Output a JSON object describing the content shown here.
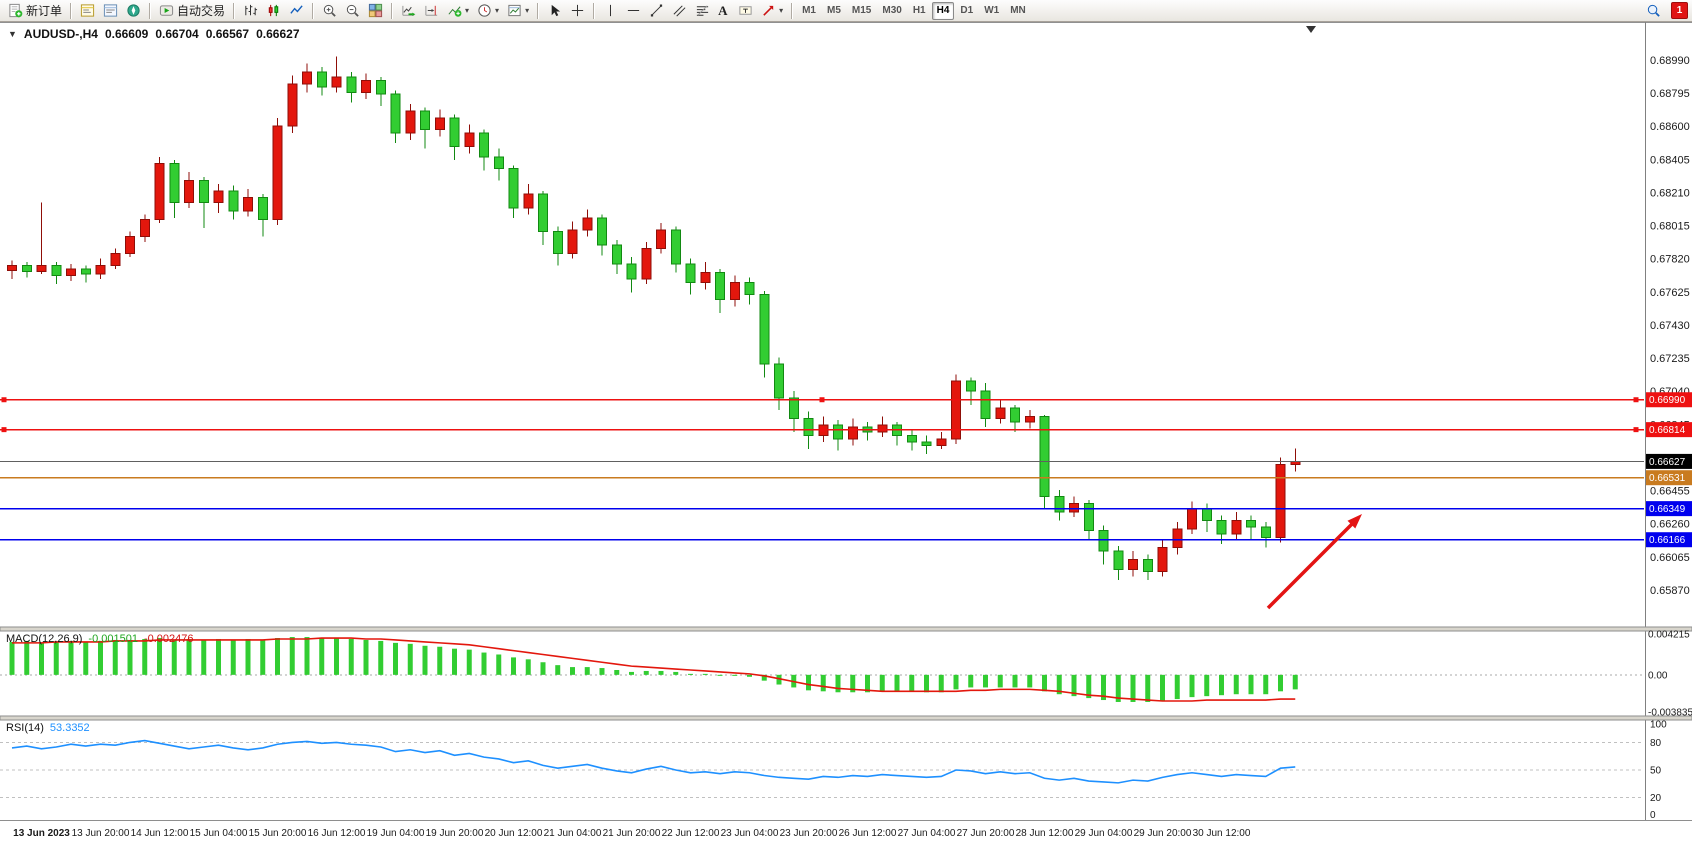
{
  "app": {
    "toolbar": {
      "new_order": "新订单",
      "autotrading": "自动交易",
      "text_tool": "A",
      "timeframes": [
        "M1",
        "M5",
        "M15",
        "M30",
        "H1",
        "H4",
        "D1",
        "W1",
        "MN"
      ],
      "active_timeframe": "H4",
      "notification_badge": "1"
    }
  },
  "chart": {
    "title": {
      "symbol": "AUDUSD-,H4",
      "open": "0.66609",
      "high": "0.66704",
      "low": "0.66567",
      "close": "0.66627"
    },
    "price_axis_labels": [
      "0.68990",
      "0.68795",
      "0.68600",
      "0.68405",
      "0.68210",
      "0.68015",
      "0.67820",
      "0.67625",
      "0.67430",
      "0.67235",
      "0.67040",
      "0.66845",
      "0.66650",
      "0.66455",
      "0.66260",
      "0.66065",
      "0.65870"
    ],
    "time_axis_labels": [
      "13 Jun 2023",
      "13 Jun 20:00",
      "14 Jun 12:00",
      "15 Jun 04:00",
      "15 Jun 20:00",
      "16 Jun 12:00",
      "19 Jun 04:00",
      "19 Jun 20:00",
      "20 Jun 12:00",
      "21 Jun 04:00",
      "21 Jun 20:00",
      "22 Jun 12:00",
      "23 Jun 04:00",
      "23 Jun 20:00",
      "26 Jun 12:00",
      "27 Jun 04:00",
      "27 Jun 20:00",
      "28 Jun 12:00",
      "29 Jun 04:00",
      "29 Jun 20:00",
      "30 Jun 12:00"
    ],
    "horizontal_lines": [
      {
        "price": 0.6699,
        "label": "0.66990",
        "color": "#ee1111",
        "selected": true
      },
      {
        "price": 0.66814,
        "label": "0.66814",
        "color": "#ee1111",
        "selected": true
      },
      {
        "price": 0.66531,
        "label": "0.66531",
        "color": "#c97b1f",
        "selected": false
      },
      {
        "price": 0.66349,
        "label": "0.66349",
        "color": "#0000ee",
        "selected": false
      },
      {
        "price": 0.66166,
        "label": "0.66166",
        "color": "#0000ee",
        "selected": false
      }
    ],
    "bid_line": {
      "price": 0.66627,
      "label": "0.66627",
      "line_color": "#606060",
      "box_color": "#000000"
    },
    "annotation_arrow": {
      "color": "#e31414",
      "direction": "up-right"
    }
  },
  "indicators": {
    "macd": {
      "label": "MACD(12,26,9)",
      "value_main": "-0.001501",
      "value_signal": "-0.002476",
      "axis_labels": [
        "0.004215",
        "0.00",
        "-0.003835"
      ]
    },
    "rsi": {
      "label": "RSI(14)",
      "value": "53.3352",
      "axis_labels": [
        "100",
        "80",
        "50",
        "20",
        "0"
      ],
      "levels": [
        80,
        50,
        20
      ]
    }
  },
  "chart_data": {
    "type": "candlestick",
    "symbol": "AUDUSD-",
    "timeframe": "H4",
    "price_range_visible": [
      0.6565,
      0.692
    ],
    "bull_color": "#e3170d",
    "bear_color": "#32cd32",
    "candles_ohlc": [
      [
        0.6775,
        0.6781,
        0.677,
        0.6778
      ],
      [
        0.6778,
        0.678,
        0.6771,
        0.67745
      ],
      [
        0.67745,
        0.6815,
        0.6773,
        0.6778
      ],
      [
        0.6778,
        0.678,
        0.6767,
        0.6772
      ],
      [
        0.6772,
        0.6779,
        0.6769,
        0.6776
      ],
      [
        0.6776,
        0.6778,
        0.6768,
        0.6773
      ],
      [
        0.6773,
        0.6782,
        0.677,
        0.6778
      ],
      [
        0.6778,
        0.6788,
        0.6776,
        0.6785
      ],
      [
        0.6785,
        0.6798,
        0.6783,
        0.6795
      ],
      [
        0.6795,
        0.6808,
        0.6792,
        0.6805
      ],
      [
        0.6805,
        0.6842,
        0.6803,
        0.6838
      ],
      [
        0.6838,
        0.684,
        0.6806,
        0.6815
      ],
      [
        0.6815,
        0.6833,
        0.6812,
        0.6828
      ],
      [
        0.6828,
        0.683,
        0.68,
        0.6815
      ],
      [
        0.6815,
        0.6826,
        0.6809,
        0.6822
      ],
      [
        0.6822,
        0.6825,
        0.6805,
        0.681
      ],
      [
        0.681,
        0.6823,
        0.6807,
        0.6818
      ],
      [
        0.6818,
        0.682,
        0.6795,
        0.6805
      ],
      [
        0.6805,
        0.6865,
        0.6802,
        0.686
      ],
      [
        0.686,
        0.689,
        0.6856,
        0.6885
      ],
      [
        0.6885,
        0.6897,
        0.688,
        0.6892
      ],
      [
        0.6892,
        0.6895,
        0.6878,
        0.6883
      ],
      [
        0.6883,
        0.6901,
        0.688,
        0.6889
      ],
      [
        0.6889,
        0.6892,
        0.6874,
        0.688
      ],
      [
        0.688,
        0.6891,
        0.6876,
        0.6887
      ],
      [
        0.6887,
        0.6889,
        0.6872,
        0.6879
      ],
      [
        0.6879,
        0.6881,
        0.685,
        0.6856
      ],
      [
        0.6856,
        0.6873,
        0.6852,
        0.6869
      ],
      [
        0.6869,
        0.6871,
        0.6847,
        0.6858
      ],
      [
        0.6858,
        0.687,
        0.6854,
        0.6865
      ],
      [
        0.6865,
        0.6867,
        0.684,
        0.6848
      ],
      [
        0.6848,
        0.6861,
        0.6844,
        0.6856
      ],
      [
        0.6856,
        0.6858,
        0.6834,
        0.6842
      ],
      [
        0.6842,
        0.6847,
        0.6828,
        0.6835
      ],
      [
        0.6835,
        0.6837,
        0.6806,
        0.6812
      ],
      [
        0.6812,
        0.6826,
        0.6808,
        0.682
      ],
      [
        0.682,
        0.6822,
        0.679,
        0.6798
      ],
      [
        0.6798,
        0.6801,
        0.6778,
        0.6785
      ],
      [
        0.6785,
        0.6804,
        0.6782,
        0.6799
      ],
      [
        0.6799,
        0.6811,
        0.6795,
        0.6806
      ],
      [
        0.6806,
        0.6808,
        0.6784,
        0.679
      ],
      [
        0.679,
        0.6793,
        0.6773,
        0.6779
      ],
      [
        0.6779,
        0.6783,
        0.6762,
        0.677
      ],
      [
        0.677,
        0.6792,
        0.6767,
        0.6788
      ],
      [
        0.6788,
        0.6803,
        0.6785,
        0.6799
      ],
      [
        0.6799,
        0.6801,
        0.6774,
        0.6779
      ],
      [
        0.6779,
        0.6782,
        0.6761,
        0.6768
      ],
      [
        0.6768,
        0.678,
        0.6764,
        0.6774
      ],
      [
        0.6774,
        0.6776,
        0.675,
        0.6758
      ],
      [
        0.6758,
        0.6772,
        0.6754,
        0.6768
      ],
      [
        0.6768,
        0.6771,
        0.6755,
        0.6761
      ],
      [
        0.6761,
        0.6763,
        0.6712,
        0.672
      ],
      [
        0.672,
        0.6724,
        0.6693,
        0.67
      ],
      [
        0.67,
        0.6704,
        0.668,
        0.6688
      ],
      [
        0.6688,
        0.6692,
        0.667,
        0.6678
      ],
      [
        0.6678,
        0.6689,
        0.6674,
        0.6684
      ],
      [
        0.6684,
        0.6687,
        0.6669,
        0.6676
      ],
      [
        0.6676,
        0.6688,
        0.6672,
        0.6683
      ],
      [
        0.6683,
        0.6686,
        0.6675,
        0.668
      ],
      [
        0.668,
        0.6689,
        0.6677,
        0.6684
      ],
      [
        0.6684,
        0.6686,
        0.6672,
        0.6678
      ],
      [
        0.6678,
        0.6681,
        0.6669,
        0.6674
      ],
      [
        0.6674,
        0.6678,
        0.6667,
        0.6672
      ],
      [
        0.6672,
        0.668,
        0.667,
        0.6676
      ],
      [
        0.6676,
        0.6714,
        0.6673,
        0.671
      ],
      [
        0.671,
        0.6712,
        0.6696,
        0.6704
      ],
      [
        0.6704,
        0.6709,
        0.6683,
        0.6688
      ],
      [
        0.6688,
        0.6699,
        0.6685,
        0.6694
      ],
      [
        0.6694,
        0.6696,
        0.668,
        0.6686
      ],
      [
        0.6686,
        0.6693,
        0.6682,
        0.6689
      ],
      [
        0.6689,
        0.669,
        0.6635,
        0.6642
      ],
      [
        0.6642,
        0.6646,
        0.6628,
        0.6633
      ],
      [
        0.6633,
        0.6642,
        0.663,
        0.6638
      ],
      [
        0.6638,
        0.664,
        0.6616,
        0.6622
      ],
      [
        0.6622,
        0.6625,
        0.6602,
        0.661
      ],
      [
        0.661,
        0.6613,
        0.6593,
        0.6599
      ],
      [
        0.6599,
        0.661,
        0.6595,
        0.6605
      ],
      [
        0.6605,
        0.6608,
        0.6593,
        0.6598
      ],
      [
        0.6598,
        0.6616,
        0.6595,
        0.6612
      ],
      [
        0.6612,
        0.6627,
        0.6608,
        0.6623
      ],
      [
        0.6623,
        0.6639,
        0.662,
        0.6635
      ],
      [
        0.6635,
        0.6638,
        0.6621,
        0.6628
      ],
      [
        0.6628,
        0.6631,
        0.6614,
        0.662
      ],
      [
        0.662,
        0.6633,
        0.6616,
        0.6628
      ],
      [
        0.6628,
        0.6631,
        0.6617,
        0.6624
      ],
      [
        0.6624,
        0.6627,
        0.6612,
        0.6618
      ],
      [
        0.6618,
        0.6665,
        0.6615,
        0.6661
      ],
      [
        0.66609,
        0.66704,
        0.66567,
        0.66627
      ]
    ],
    "macd": {
      "histogram_color": "#32cd32",
      "signal_color": "#e3170d",
      "range": [
        -0.003835,
        0.004215
      ],
      "histogram": [
        0.0034,
        0.0035,
        0.0033,
        0.0034,
        0.0035,
        0.0034,
        0.0035,
        0.0036,
        0.0036,
        0.0037,
        0.0038,
        0.0036,
        0.0037,
        0.0036,
        0.0037,
        0.0036,
        0.0037,
        0.0036,
        0.0038,
        0.0039,
        0.0039,
        0.0038,
        0.0038,
        0.0037,
        0.0036,
        0.0035,
        0.0033,
        0.0032,
        0.003,
        0.0029,
        0.0027,
        0.0026,
        0.0023,
        0.0021,
        0.0018,
        0.0016,
        0.0013,
        0.001,
        0.0008,
        0.0008,
        0.0007,
        0.0005,
        0.0003,
        0.0004,
        0.0004,
        0.0003,
        0.0001,
        0.0001,
        0.0,
        -0.0001,
        -0.0002,
        -0.0006,
        -0.001,
        -0.0013,
        -0.0016,
        -0.0017,
        -0.0018,
        -0.0018,
        -0.0018,
        -0.0017,
        -0.0017,
        -0.0017,
        -0.0018,
        -0.0018,
        -0.0015,
        -0.0013,
        -0.0013,
        -0.0013,
        -0.0013,
        -0.0013,
        -0.0017,
        -0.002,
        -0.0022,
        -0.0024,
        -0.0026,
        -0.0028,
        -0.0028,
        -0.0028,
        -0.0027,
        -0.0025,
        -0.0023,
        -0.0022,
        -0.0021,
        -0.002,
        -0.002,
        -0.002,
        -0.0017,
        -0.0015
      ],
      "signal": [
        0.0033,
        0.0033,
        0.0033,
        0.0034,
        0.0034,
        0.0034,
        0.0034,
        0.0035,
        0.0035,
        0.0035,
        0.0036,
        0.0036,
        0.0036,
        0.0036,
        0.0036,
        0.0036,
        0.0036,
        0.0036,
        0.0037,
        0.0037,
        0.0037,
        0.0038,
        0.0038,
        0.0038,
        0.0037,
        0.0037,
        0.0036,
        0.0035,
        0.0034,
        0.0033,
        0.0032,
        0.0031,
        0.0029,
        0.0027,
        0.0025,
        0.0023,
        0.0021,
        0.0019,
        0.0017,
        0.0015,
        0.0013,
        0.0011,
        0.0009,
        0.0008,
        0.0007,
        0.0006,
        0.0005,
        0.0004,
        0.0003,
        0.0002,
        0.0001,
        -0.0001,
        -0.0004,
        -0.0007,
        -0.001,
        -0.0012,
        -0.0014,
        -0.0015,
        -0.0016,
        -0.0017,
        -0.0017,
        -0.0017,
        -0.0017,
        -0.0017,
        -0.0017,
        -0.0016,
        -0.0016,
        -0.0015,
        -0.0015,
        -0.0015,
        -0.0016,
        -0.0017,
        -0.0019,
        -0.0021,
        -0.0022,
        -0.0024,
        -0.0025,
        -0.0026,
        -0.0027,
        -0.0027,
        -0.0027,
        -0.0026,
        -0.0026,
        -0.0026,
        -0.0026,
        -0.0026,
        -0.0025,
        -0.0025
      ]
    },
    "rsi": {
      "color": "#1e90ff",
      "range": [
        0,
        100
      ],
      "levels": [
        80,
        50,
        20
      ],
      "values": [
        74,
        76,
        73,
        75,
        78,
        76,
        78,
        77,
        80,
        82,
        79,
        76,
        73,
        75,
        77,
        74,
        72,
        74,
        78,
        80,
        81,
        79,
        80,
        78,
        77,
        75,
        70,
        72,
        69,
        71,
        66,
        68,
        64,
        62,
        58,
        60,
        55,
        52,
        54,
        56,
        52,
        49,
        47,
        51,
        54,
        50,
        47,
        48,
        46,
        48,
        47,
        44,
        42,
        41,
        40,
        43,
        42,
        44,
        43,
        45,
        44,
        43,
        42,
        43,
        50,
        49,
        46,
        48,
        46,
        47,
        41,
        39,
        41,
        38,
        37,
        36,
        39,
        38,
        42,
        45,
        47,
        45,
        43,
        45,
        44,
        43,
        52,
        53.3
      ]
    }
  }
}
